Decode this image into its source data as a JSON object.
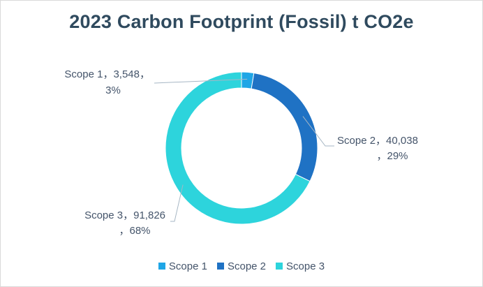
{
  "chart_data": {
    "type": "pie",
    "variant": "doughnut",
    "title": "2023 Carbon Footprint (Fossil) t CO2e",
    "categories": [
      "Scope 1",
      "Scope 2",
      "Scope 3"
    ],
    "values": [
      3548,
      40038,
      91826
    ],
    "percents": [
      "3%",
      "29%",
      "68%"
    ],
    "colors": [
      "#1fa6e6",
      "#1f72c4",
      "#2dd4dc"
    ],
    "data_labels": [
      {
        "line1": "Scope 1，3,548，",
        "line2": "3%"
      },
      {
        "line1": "Scope 2，40,038",
        "line2": "，29%"
      },
      {
        "line1": "Scope 3，91,826",
        "line2": "，68%"
      }
    ],
    "legend": {
      "position": "bottom",
      "entries": [
        "Scope 1",
        "Scope 2",
        "Scope 3"
      ]
    }
  }
}
